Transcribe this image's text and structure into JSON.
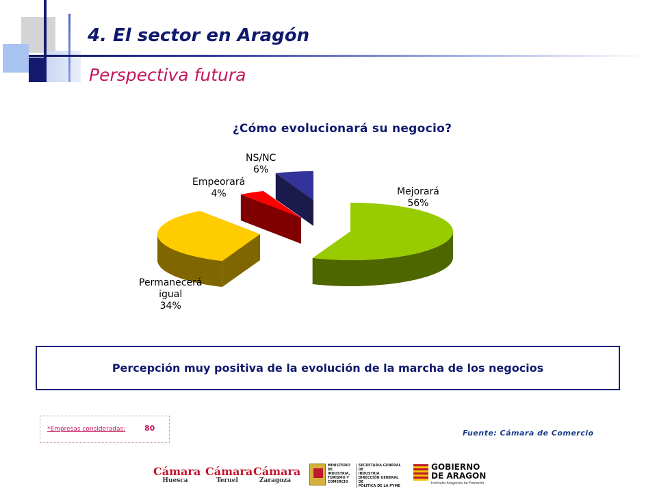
{
  "header": {
    "title": "4. El sector en Aragón",
    "subtitle": "Perspectiva futura"
  },
  "chart_data": {
    "type": "pie",
    "title": "¿Cómo evolucionará su negocio?",
    "slices": [
      {
        "label": "Mejorará",
        "value": 56,
        "value_text": "56%",
        "color": "#99cc00",
        "side_color": "#4d6600"
      },
      {
        "label": "Permanecerá igual",
        "value": 34,
        "value_text": "34%",
        "color": "#ffcc00",
        "side_color": "#806600"
      },
      {
        "label": "Empeorará",
        "value": 4,
        "value_text": "4%",
        "color": "#ff0000",
        "side_color": "#800000"
      },
      {
        "label": "NS/NC",
        "value": 6,
        "value_text": "6%",
        "color": "#333399",
        "side_color": "#1a1a4d"
      }
    ],
    "style": "3d-exploded-pie"
  },
  "label_lines": {
    "mejorara": "Mejorará",
    "permanecera_1": "Permanecerá",
    "permanecera_2": "igual",
    "empeorara": "Empeorará",
    "nsnc": "NS/NC"
  },
  "conclusion": "Percepción muy positiva de la evolución de la marcha de los negocios",
  "footer": {
    "empresas_label": "*Empresas consideradas:",
    "empresas_value": "80",
    "fuente": "Fuente: Cámara de Comercio"
  },
  "logos": {
    "camara_name": "Cámara",
    "camaras": [
      "Huesca",
      "Teruel",
      "Zaragoza"
    ],
    "ministerio": [
      "MINISTERIO",
      "DE INDUSTRIA,",
      "TURISMO Y",
      "COMERCIO"
    ],
    "secretaria": [
      "SECRETARIA GENERAL DE",
      "INDUSTRIA",
      "DIRECCIÓN GENERAL DE",
      "POLÍTICA DE LA PYME"
    ],
    "gobierno": [
      "GOBIERNO",
      "DE ARAGON"
    ],
    "instituto": "Instituto Aragonés de Fomento"
  }
}
